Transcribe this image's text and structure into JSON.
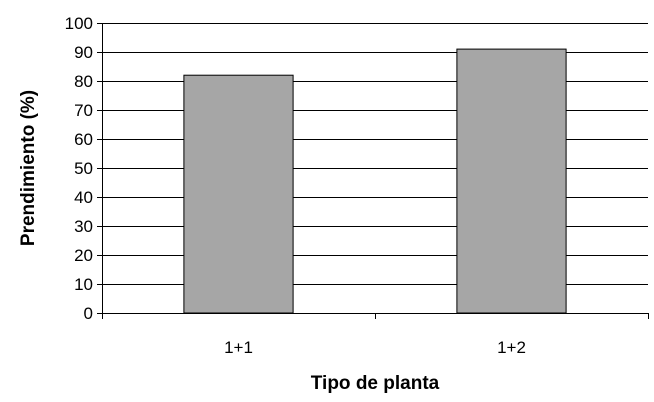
{
  "chart_data": {
    "type": "bar",
    "categories": [
      "1+1",
      "1+2"
    ],
    "values": [
      82,
      91
    ],
    "xlabel": "Tipo de planta",
    "ylabel": "Prendimiento (%)",
    "ylim": [
      0,
      100
    ],
    "yticks": [
      0,
      10,
      20,
      30,
      40,
      50,
      60,
      70,
      80,
      90,
      100
    ],
    "grid": true,
    "legend": "none",
    "colors": {
      "bar_fill": "#a6a6a6",
      "bar_stroke": "#000000",
      "grid": "#000000",
      "axis": "#000000"
    }
  }
}
